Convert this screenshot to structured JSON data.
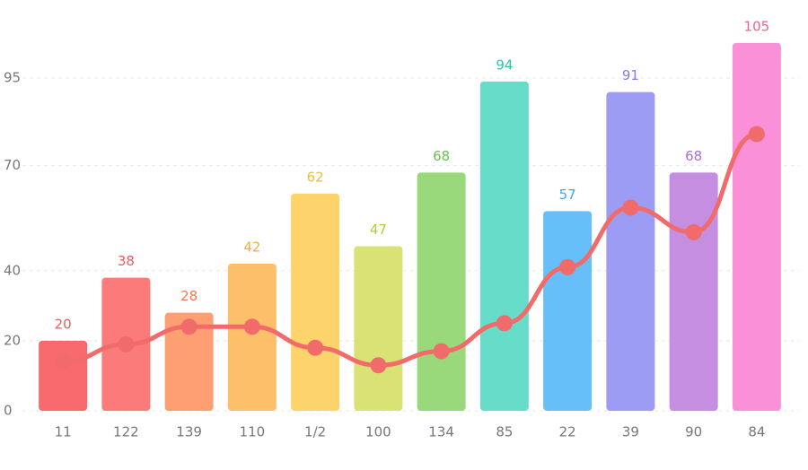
{
  "chart_data": {
    "type": "bar",
    "categories": [
      "11",
      "122",
      "139",
      "110",
      "1/2",
      "100",
      "134",
      "85",
      "22",
      "39",
      "90",
      "84"
    ],
    "series": [
      {
        "type": "bar",
        "values": [
          20,
          38,
          28,
          42,
          62,
          47,
          68,
          94,
          57,
          91,
          68,
          105
        ],
        "colors": [
          "#f96a6e",
          "#fb7b7b",
          "#fd9f72",
          "#fdbf6a",
          "#fdd46c",
          "#d9e275",
          "#9ad97b",
          "#67dcc9",
          "#66bff8",
          "#9c9cf5",
          "#c58ee0",
          "#f990d8"
        ],
        "label_colors": [
          "#ee5a5e",
          "#ee5a5e",
          "#f07a50",
          "#f0b040",
          "#e8c040",
          "#b8c840",
          "#6cc050",
          "#30c4a8",
          "#40a8e8",
          "#8080e8",
          "#a870d0",
          "#f06090"
        ]
      },
      {
        "type": "line",
        "color": "#f26b6b",
        "values": [
          14,
          19,
          24,
          24,
          18,
          13,
          17,
          25,
          41,
          58,
          51,
          79
        ]
      }
    ],
    "ylim": [
      0,
      110
    ],
    "yticks": [
      0,
      20,
      40,
      70,
      95
    ],
    "grid": true
  }
}
